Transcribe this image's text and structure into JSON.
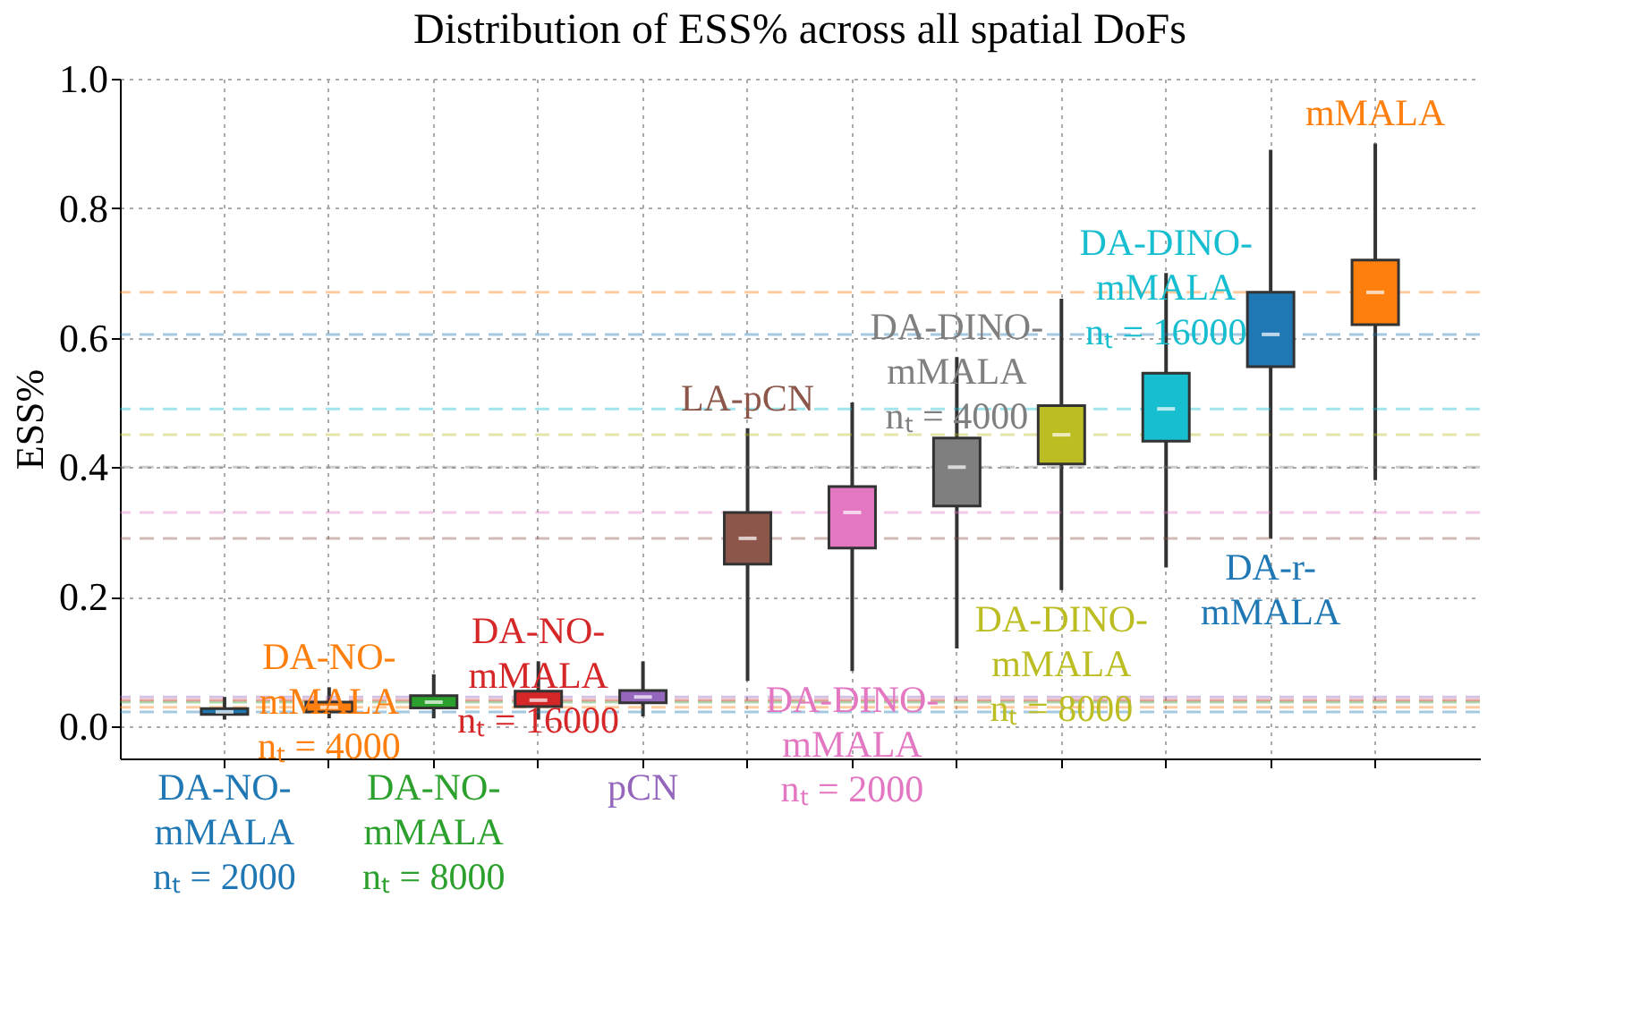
{
  "chart_data": {
    "type": "box",
    "title": "Distribution of ESS% across all spatial DoFs",
    "ylabel": "ESS%",
    "categories": [
      "DA-NO-\nmMALA\nnₜ = 2000",
      "DA-NO-\nmMALA\nnₜ = 4000",
      "DA-NO-\nmMALA\nnₜ = 8000",
      "DA-NO-\nmMALA\nnₜ = 16000",
      "pCN",
      "LA-pCN",
      "DA-DINO-\nmMALA\nnₜ = 2000",
      "DA-DINO-\nmMALA\nnₜ = 4000",
      "DA-DINO-\nmMALA\nnₜ = 8000",
      "DA-DINO-\nmMALA\nnₜ = 16000",
      "DA-r-\nmMALA",
      "mMALA"
    ],
    "colors": [
      "#1f77b4",
      "#ff7f0e",
      "#2ca02c",
      "#d62728",
      "#9467bd",
      "#8c564b",
      "#e377c2",
      "#7f7f7f",
      "#bcbd22",
      "#17becf",
      "#1f77b4",
      "#ff7f0e"
    ],
    "boxes": [
      {
        "low": 0.01,
        "q1": 0.018,
        "median": 0.022,
        "q3": 0.027,
        "high": 0.045
      },
      {
        "low": 0.012,
        "q1": 0.022,
        "median": 0.029,
        "q3": 0.037,
        "high": 0.06
      },
      {
        "low": 0.012,
        "q1": 0.028,
        "median": 0.037,
        "q3": 0.047,
        "high": 0.08
      },
      {
        "low": 0.01,
        "q1": 0.03,
        "median": 0.04,
        "q3": 0.054,
        "high": 0.1
      },
      {
        "low": 0.015,
        "q1": 0.036,
        "median": 0.045,
        "q3": 0.055,
        "high": 0.1
      },
      {
        "low": 0.07,
        "q1": 0.25,
        "median": 0.29,
        "q3": 0.33,
        "high": 0.46
      },
      {
        "low": 0.085,
        "q1": 0.275,
        "median": 0.33,
        "q3": 0.37,
        "high": 0.5
      },
      {
        "low": 0.12,
        "q1": 0.34,
        "median": 0.4,
        "q3": 0.445,
        "high": 0.57
      },
      {
        "low": 0.21,
        "q1": 0.405,
        "median": 0.45,
        "q3": 0.495,
        "high": 0.66
      },
      {
        "low": 0.245,
        "q1": 0.44,
        "median": 0.49,
        "q3": 0.545,
        "high": 0.7
      },
      {
        "low": 0.29,
        "q1": 0.555,
        "median": 0.605,
        "q3": 0.67,
        "high": 0.89
      },
      {
        "low": 0.38,
        "q1": 0.62,
        "median": 0.67,
        "q3": 0.72,
        "high": 0.9
      }
    ],
    "ylim": [
      -0.05,
      1.0
    ],
    "yticks": [
      {
        "value": 0,
        "label": "0.0"
      },
      0.2,
      0.4,
      0.6,
      0.8,
      {
        "value": 1,
        "label": "1.0"
      }
    ],
    "grid": true,
    "tick_labels": "y",
    "ref_lines": [
      {
        "axis": "y",
        "value": 0.022,
        "color": "#1f77b4",
        "line_style": "dashed"
      },
      {
        "axis": "y",
        "value": 0.029,
        "color": "#ff7f0e",
        "line_style": "dashed"
      },
      {
        "axis": "y",
        "value": 0.037,
        "color": "#2ca02c",
        "line_style": "dashed"
      },
      {
        "axis": "y",
        "value": 0.04,
        "color": "#d62728",
        "line_style": "dashed"
      },
      {
        "axis": "y",
        "value": 0.045,
        "color": "#9467bd",
        "line_style": "dashed"
      },
      {
        "axis": "y",
        "value": 0.29,
        "color": "#8c564b",
        "line_style": "dashed"
      },
      {
        "axis": "y",
        "value": 0.33,
        "color": "#e377c2",
        "line_style": "dashed"
      },
      {
        "axis": "y",
        "value": 0.4,
        "color": "#7f7f7f",
        "line_style": "dashed"
      },
      {
        "axis": "y",
        "value": 0.45,
        "color": "#bcbd22",
        "line_style": "dashed"
      },
      {
        "axis": "y",
        "value": 0.49,
        "color": "#17becf",
        "line_style": "dashed"
      },
      {
        "axis": "y",
        "value": 0.605,
        "color": "#1f77b4",
        "line_style": "dashed"
      },
      {
        "axis": "y",
        "value": 0.67,
        "color": "#ff7f0e",
        "line_style": "dashed"
      }
    ]
  }
}
